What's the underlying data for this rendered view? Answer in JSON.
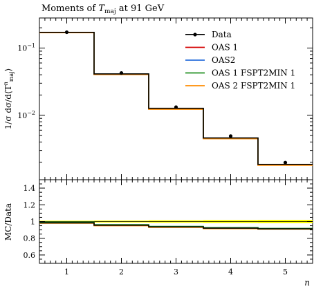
{
  "title_prefix": "Moments of ",
  "title_var": "T",
  "title_sub": "maj",
  "title_suffix": " at 91 GeV",
  "chart_data": [
    {
      "panel": "main",
      "type": "line",
      "step": true,
      "yscale": "log",
      "ylabel_parts": [
        "1/σ dσ/d⟨T",
        "n",
        "maj",
        "⟩"
      ],
      "xlim": [
        0.5,
        5.5
      ],
      "ylim": [
        0.0011,
        0.28
      ],
      "yticks": [
        {
          "value": 0.1,
          "label_base": "10",
          "label_exp": "−1"
        },
        {
          "value": 0.01,
          "label_base": "10",
          "label_exp": "−2"
        }
      ],
      "data": {
        "name": "Data",
        "color": "#000000",
        "x": [
          1,
          2,
          3,
          4,
          5
        ],
        "y": [
          0.172,
          0.0425,
          0.0132,
          0.0049,
          0.00198
        ]
      },
      "bin_edges": [
        0.5,
        1.5,
        2.5,
        3.5,
        4.5,
        5.5
      ],
      "series": [
        {
          "name": "OAS 1",
          "color": "#d40000",
          "values": [
            0.17,
            0.0405,
            0.0124,
            0.0045,
            0.00182
          ]
        },
        {
          "name": "OAS2",
          "color": "#2a6fdb",
          "values": [
            0.17,
            0.0407,
            0.0125,
            0.00455,
            0.00184
          ]
        },
        {
          "name": "OAS 1 FSPT2MIN 1",
          "color": "#1f8f1f",
          "values": [
            0.171,
            0.041,
            0.0126,
            0.00458,
            0.00185
          ]
        },
        {
          "name": "OAS 2 FSPT2MIN 1",
          "color": "#ff8c00",
          "values": [
            0.169,
            0.0402,
            0.0123,
            0.00448,
            0.00181
          ]
        }
      ],
      "mc_total": {
        "name": "MC",
        "color": "#000000",
        "values": [
          0.171,
          0.0412,
          0.0127,
          0.0046,
          0.00186
        ]
      }
    },
    {
      "panel": "ratio",
      "type": "line",
      "step": true,
      "ylabel": "MC/Data",
      "xlabel": "n",
      "xlim": [
        0.5,
        5.5
      ],
      "ylim": [
        0.5,
        1.5
      ],
      "yticks": [
        {
          "value": 0.6,
          "label": "0.6"
        },
        {
          "value": 0.8,
          "label": "0.8"
        },
        {
          "value": 1.0,
          "label": "1"
        },
        {
          "value": 1.2,
          "label": "1.2"
        },
        {
          "value": 1.4,
          "label": "1.4"
        }
      ],
      "xticks": [
        {
          "value": 1,
          "label": "1"
        },
        {
          "value": 2,
          "label": "2"
        },
        {
          "value": 3,
          "label": "3"
        },
        {
          "value": 4,
          "label": "4"
        },
        {
          "value": 5,
          "label": "5"
        }
      ],
      "band": {
        "color": "#ffff00",
        "lo": [
          0.99,
          0.988,
          0.985,
          0.982,
          0.98
        ],
        "hi": [
          1.01,
          1.012,
          1.015,
          1.018,
          1.02
        ]
      },
      "bin_edges": [
        0.5,
        1.5,
        2.5,
        3.5,
        4.5,
        5.5
      ],
      "series": [
        {
          "name": "OAS 1",
          "color": "#d40000",
          "values": [
            0.985,
            0.955,
            0.935,
            0.92,
            0.912
          ]
        },
        {
          "name": "OAS2",
          "color": "#2a6fdb",
          "values": [
            0.988,
            0.958,
            0.938,
            0.923,
            0.915
          ]
        },
        {
          "name": "OAS 1 FSPT2MIN 1",
          "color": "#1f8f1f",
          "values": [
            0.992,
            0.962,
            0.942,
            0.927,
            0.918
          ]
        },
        {
          "name": "OAS 2 FSPT2MIN 1",
          "color": "#ff8c00",
          "values": [
            0.98,
            0.95,
            0.93,
            0.915,
            0.908
          ]
        },
        {
          "name": "MC",
          "color": "#000000",
          "values": [
            0.984,
            0.956,
            0.936,
            0.921,
            0.913
          ]
        }
      ]
    }
  ]
}
